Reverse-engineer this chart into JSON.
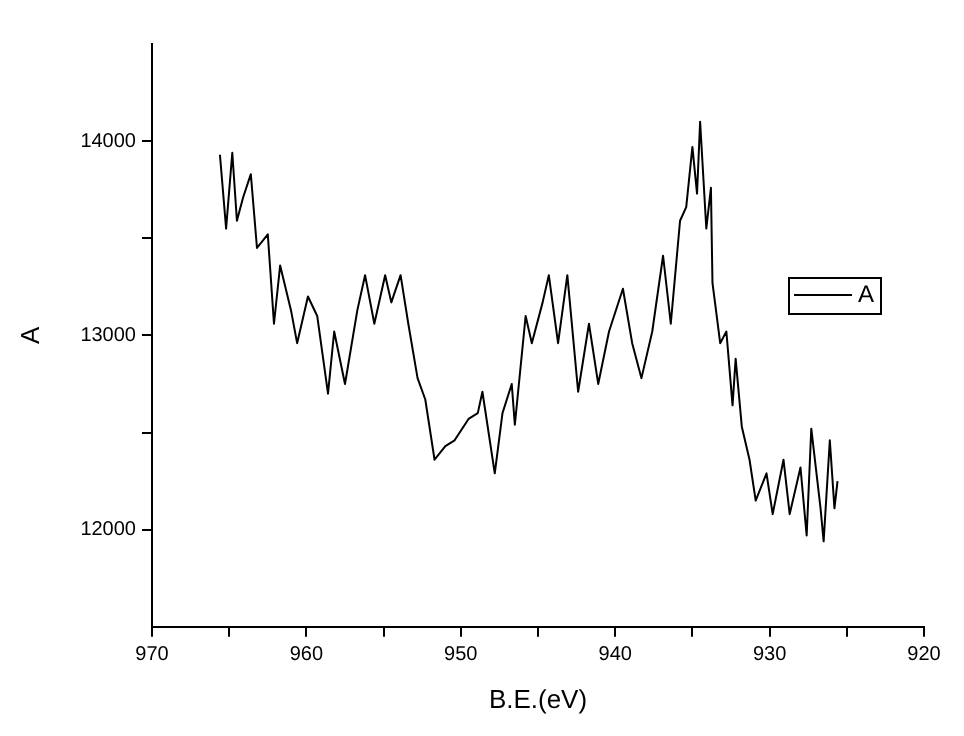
{
  "chart_data": {
    "type": "line",
    "xlabel": "B.E.(eV)",
    "ylabel": "A",
    "legend": "right",
    "grid": false,
    "marker": "none",
    "line_style": "solid",
    "xlim": [
      970,
      920
    ],
    "xticks": [
      970,
      {
        "value": 965,
        "label": null
      },
      960,
      {
        "value": 955,
        "label": null
      },
      950,
      {
        "value": 945,
        "label": null
      },
      940,
      {
        "value": 935,
        "label": null
      },
      930,
      {
        "value": 925,
        "label": null
      },
      920
    ],
    "ylim": [
      11500,
      14500
    ],
    "yticks": [
      12000,
      {
        "value": 12500,
        "label": null
      },
      13000,
      {
        "value": 13500,
        "label": null
      },
      14000
    ],
    "series": [
      {
        "name": "A",
        "color": "#000000",
        "x": [
          965.6,
          965.2,
          964.8,
          964.5,
          964.1,
          963.6,
          963.2,
          962.5,
          962.1,
          961.7,
          961.0,
          960.6,
          959.9,
          959.3,
          958.6,
          958.2,
          957.5,
          956.7,
          956.2,
          955.6,
          954.9,
          954.5,
          953.9,
          953.4,
          952.8,
          952.3,
          951.7,
          951.0,
          950.4,
          949.5,
          948.9,
          948.6,
          947.8,
          947.3,
          946.7,
          946.5,
          945.8,
          945.4,
          944.7,
          944.3,
          943.7,
          943.1,
          942.4,
          941.7,
          941.1,
          940.4,
          939.5,
          938.9,
          938.3,
          937.6,
          936.9,
          936.4,
          935.8,
          935.4,
          935.0,
          934.7,
          934.5,
          934.1,
          933.8,
          933.7,
          933.2,
          932.8,
          932.4,
          932.2,
          931.8,
          931.3,
          930.9,
          930.2,
          929.8,
          929.1,
          928.7,
          928.0,
          927.6,
          927.3,
          926.7,
          926.5,
          926.1,
          925.8,
          925.6
        ],
        "values": [
          13930,
          13550,
          13940,
          13590,
          13710,
          13830,
          13450,
          13520,
          13060,
          13360,
          13130,
          12960,
          13200,
          13100,
          12700,
          13020,
          12750,
          13130,
          13310,
          13060,
          13310,
          13170,
          13310,
          13060,
          12780,
          12670,
          12360,
          12430,
          12460,
          12570,
          12600,
          12710,
          12290,
          12600,
          12750,
          12540,
          13100,
          12960,
          13170,
          13310,
          12960,
          13310,
          12710,
          13060,
          12750,
          13020,
          13240,
          12960,
          12780,
          13020,
          13410,
          13060,
          13590,
          13660,
          13970,
          13730,
          14100,
          13550,
          13760,
          13270,
          12960,
          13020,
          12640,
          12880,
          12530,
          12360,
          12150,
          12290,
          12080,
          12360,
          12080,
          12320,
          11970,
          12520,
          12110,
          11940,
          12460,
          12110,
          12250
        ]
      }
    ]
  }
}
